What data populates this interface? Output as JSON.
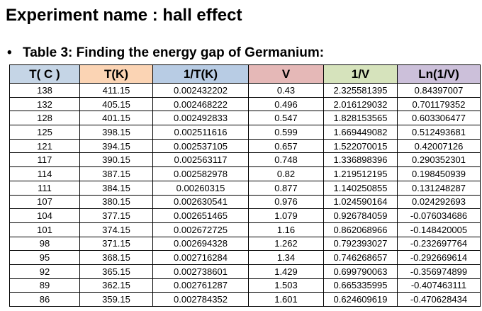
{
  "header": {
    "title": "Experiment name : hall effect",
    "subtitle": "Table 3: Finding the energy gap of Germanium:"
  },
  "table": {
    "columns": [
      "T( C )",
      "T(K)",
      "1/T(K)",
      "V",
      "1/V",
      "Ln(1/V)"
    ],
    "rows": [
      [
        "138",
        "411.15",
        "0.002432202",
        "0.43",
        "2.325581395",
        "0.84397007"
      ],
      [
        "132",
        "405.15",
        "0.002468222",
        "0.496",
        "2.016129032",
        "0.701179352"
      ],
      [
        "128",
        "401.15",
        "0.002492833",
        "0.547",
        "1.828153565",
        "0.603306477"
      ],
      [
        "125",
        "398.15",
        "0.002511616",
        "0.599",
        "1.669449082",
        "0.512493681"
      ],
      [
        "121",
        "394.15",
        "0.002537105",
        "0.657",
        "1.522070015",
        "0.42007126"
      ],
      [
        "117",
        "390.15",
        "0.002563117",
        "0.748",
        "1.336898396",
        "0.290352301"
      ],
      [
        "114",
        "387.15",
        "0.002582978",
        "0.82",
        "1.219512195",
        "0.198450939"
      ],
      [
        "111",
        "384.15",
        "0.00260315",
        "0.877",
        "1.140250855",
        "0.131248287"
      ],
      [
        "107",
        "380.15",
        "0.002630541",
        "0.976",
        "1.024590164",
        "0.024292693"
      ],
      [
        "104",
        "377.15",
        "0.002651465",
        "1.079",
        "0.926784059",
        "-0.076034686"
      ],
      [
        "101",
        "374.15",
        "0.002672725",
        "1.16",
        "0.862068966",
        "-0.148420005"
      ],
      [
        "98",
        "371.15",
        "0.002694328",
        "1.262",
        "0.792393027",
        "-0.232697764"
      ],
      [
        "95",
        "368.15",
        "0.002716284",
        "1.34",
        "0.746268657",
        "-0.292669614"
      ],
      [
        "92",
        "365.15",
        "0.002738601",
        "1.429",
        "0.699790063",
        "-0.356974899"
      ],
      [
        "89",
        "362.15",
        "0.002761287",
        "1.503",
        "0.665335995",
        "-0.407463111"
      ],
      [
        "86",
        "359.15",
        "0.002784352",
        "1.601",
        "0.624609619",
        "-0.470628434"
      ]
    ]
  }
}
